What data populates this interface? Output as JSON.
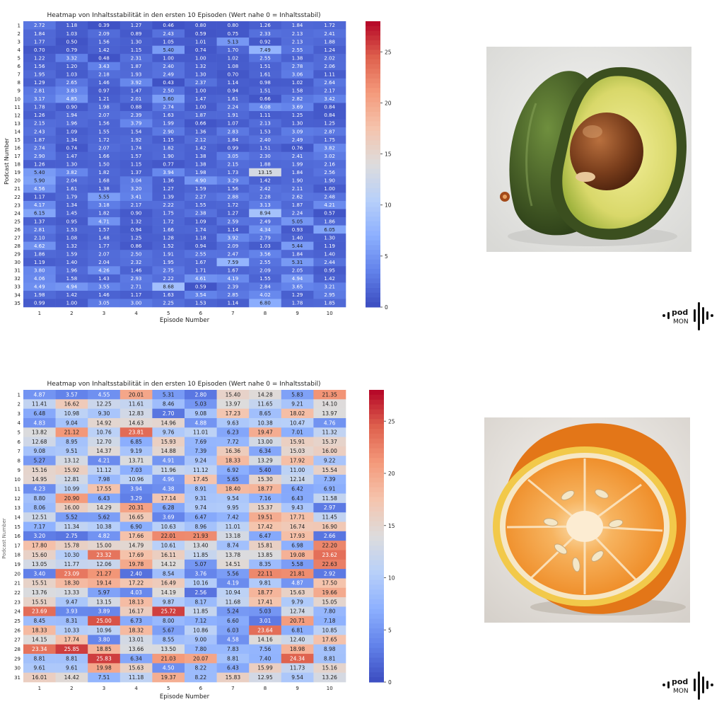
{
  "chart_data": [
    {
      "type": "heatmap",
      "title": "Heatmap von Inhaltsstabilität in den ersten 10 Episoden (Wert nahe 0 = Inhaltsstabil)",
      "xlabel": "Episode Number",
      "ylabel": "Podcast Number",
      "x": [
        "1",
        "2",
        "3",
        "4",
        "5",
        "6",
        "7",
        "8",
        "9",
        "10"
      ],
      "y": [
        "1",
        "2",
        "3",
        "4",
        "5",
        "6",
        "7",
        "8",
        "9",
        "10",
        "11",
        "12",
        "13",
        "14",
        "15",
        "16",
        "17",
        "18",
        "19",
        "20",
        "21",
        "22",
        "23",
        "24",
        "25",
        "26",
        "27",
        "28",
        "29",
        "30",
        "31",
        "32",
        "33",
        "34",
        "35"
      ],
      "colorbar_ticks": [
        0,
        5,
        10,
        15,
        20,
        25
      ],
      "vmin": 0,
      "vmax": 28,
      "colormap": "coolwarm",
      "values": [
        [
          2.72,
          1.18,
          0.39,
          1.27,
          0.46,
          0.8,
          0.8,
          1.26,
          1.84,
          1.72
        ],
        [
          1.84,
          1.03,
          2.09,
          0.89,
          2.43,
          0.59,
          0.75,
          2.33,
          2.13,
          2.41
        ],
        [
          1.77,
          0.5,
          1.56,
          1.3,
          1.05,
          1.01,
          5.13,
          0.92,
          2.13,
          1.88
        ],
        [
          0.7,
          0.79,
          1.42,
          1.15,
          5.4,
          0.74,
          1.7,
          7.49,
          2.55,
          1.24
        ],
        [
          1.22,
          3.32,
          0.48,
          2.31,
          1.0,
          1.0,
          1.02,
          2.55,
          1.38,
          2.02
        ],
        [
          1.56,
          1.2,
          3.43,
          1.87,
          2.4,
          1.32,
          1.08,
          1.51,
          2.78,
          2.06
        ],
        [
          1.95,
          1.03,
          2.18,
          1.93,
          2.49,
          1.3,
          0.7,
          1.61,
          3.06,
          1.11
        ],
        [
          1.29,
          2.65,
          1.46,
          3.92,
          0.43,
          2.37,
          1.14,
          0.98,
          1.02,
          2.64
        ],
        [
          2.81,
          3.83,
          0.97,
          1.47,
          2.5,
          1.0,
          0.94,
          1.51,
          1.58,
          2.17
        ],
        [
          3.17,
          4.85,
          1.21,
          2.01,
          5.6,
          1.47,
          1.61,
          0.66,
          2.82,
          3.42
        ],
        [
          1.78,
          0.9,
          1.98,
          0.88,
          2.74,
          1.0,
          2.24,
          4.08,
          3.69,
          0.84
        ],
        [
          1.26,
          1.94,
          2.07,
          2.39,
          1.63,
          1.87,
          1.91,
          1.11,
          1.25,
          0.84
        ],
        [
          2.15,
          1.96,
          1.56,
          3.79,
          1.99,
          0.66,
          1.07,
          2.13,
          1.3,
          1.25
        ],
        [
          2.43,
          1.09,
          1.55,
          1.54,
          2.9,
          1.36,
          2.83,
          1.53,
          3.09,
          2.87
        ],
        [
          1.87,
          1.34,
          1.72,
          1.92,
          1.15,
          2.12,
          1.84,
          2.4,
          2.49,
          1.75
        ],
        [
          2.74,
          0.74,
          2.07,
          1.74,
          1.82,
          1.42,
          0.99,
          1.51,
          0.76,
          3.82
        ],
        [
          2.9,
          1.47,
          1.66,
          1.57,
          1.9,
          1.38,
          3.05,
          2.3,
          2.41,
          3.02
        ],
        [
          1.26,
          1.3,
          1.5,
          1.15,
          0.77,
          1.38,
          2.15,
          1.88,
          1.99,
          2.16
        ],
        [
          5.4,
          3.82,
          1.82,
          1.37,
          3.94,
          1.98,
          1.73,
          13.15,
          1.84,
          2.56
        ],
        [
          5.9,
          2.04,
          1.68,
          3.04,
          1.36,
          4.9,
          3.29,
          1.42,
          1.9,
          1.9
        ],
        [
          4.56,
          1.61,
          1.38,
          3.2,
          1.27,
          1.59,
          1.56,
          2.42,
          2.11,
          1.0
        ],
        [
          1.17,
          1.79,
          5.55,
          3.41,
          1.39,
          2.27,
          2.88,
          2.28,
          2.62,
          2.48
        ],
        [
          4.17,
          1.34,
          3.18,
          2.17,
          2.22,
          1.55,
          1.72,
          3.13,
          1.87,
          4.21
        ],
        [
          6.15,
          1.45,
          1.82,
          0.9,
          1.75,
          2.38,
          1.27,
          8.94,
          2.24,
          0.57
        ],
        [
          1.37,
          0.95,
          4.71,
          1.32,
          1.72,
          1.09,
          2.59,
          2.49,
          5.05,
          1.86
        ],
        [
          2.81,
          1.53,
          1.57,
          0.94,
          1.66,
          1.74,
          1.14,
          4.34,
          0.93,
          6.05
        ],
        [
          2.1,
          1.08,
          1.48,
          1.25,
          1.28,
          1.18,
          3.92,
          2.79,
          1.4,
          1.3
        ],
        [
          4.62,
          1.32,
          1.77,
          0.86,
          1.52,
          0.94,
          2.09,
          1.03,
          5.44,
          1.19
        ],
        [
          1.86,
          1.59,
          2.07,
          2.5,
          1.91,
          2.55,
          2.47,
          3.56,
          1.84,
          1.4
        ],
        [
          1.19,
          1.4,
          2.04,
          2.32,
          1.95,
          1.67,
          7.59,
          2.55,
          5.31,
          2.44
        ],
        [
          3.8,
          1.96,
          4.26,
          1.46,
          2.75,
          1.71,
          1.67,
          2.09,
          2.05,
          0.95
        ],
        [
          4.06,
          1.58,
          1.43,
          2.93,
          2.22,
          4.61,
          4.19,
          1.55,
          4.94,
          1.42
        ],
        [
          4.49,
          4.94,
          3.55,
          2.71,
          8.68,
          0.59,
          2.39,
          2.84,
          3.65,
          3.21
        ],
        [
          1.98,
          1.42,
          1.46,
          1.17,
          1.63,
          3.54,
          2.85,
          4.02,
          1.29,
          2.95
        ],
        [
          0.99,
          1.0,
          3.05,
          3.0,
          2.25,
          1.53,
          1.14,
          6.8,
          1.78,
          1.85
        ]
      ]
    },
    {
      "type": "heatmap",
      "title": "Heatmap von Inhaltsstabilität in den ersten 10 Episoden (Wert nahe 0 = Inhaltsstabil)",
      "xlabel": "Episode Number",
      "ylabel": "Podcast Number",
      "x": [
        "1",
        "2",
        "3",
        "4",
        "5",
        "6",
        "7",
        "8",
        "9",
        "10"
      ],
      "y": [
        "1",
        "2",
        "3",
        "4",
        "5",
        "6",
        "7",
        "8",
        "9",
        "10",
        "11",
        "12",
        "13",
        "14",
        "15",
        "16",
        "17",
        "18",
        "19",
        "20",
        "21",
        "22",
        "23",
        "24",
        "25",
        "26",
        "27",
        "28",
        "29",
        "30",
        "31"
      ],
      "colorbar_ticks": [
        0,
        5,
        10,
        15,
        20,
        25
      ],
      "vmin": 0,
      "vmax": 28,
      "colormap": "coolwarm",
      "values": [
        [
          4.87,
          3.57,
          4.55,
          20.01,
          5.31,
          2.8,
          15.4,
          14.28,
          5.83,
          21.35
        ],
        [
          11.41,
          16.62,
          12.25,
          11.61,
          8.46,
          5.03,
          13.97,
          11.65,
          9.21,
          14.1
        ],
        [
          6.48,
          10.98,
          9.3,
          12.83,
          2.7,
          9.08,
          17.23,
          8.65,
          18.02,
          13.97
        ],
        [
          4.83,
          9.04,
          14.92,
          14.63,
          14.96,
          4.88,
          9.63,
          10.38,
          10.47,
          4.76
        ],
        [
          13.82,
          21.12,
          10.76,
          23.81,
          9.76,
          11.01,
          6.23,
          19.47,
          7.01,
          11.32
        ],
        [
          12.68,
          8.95,
          12.7,
          6.85,
          15.93,
          7.69,
          7.72,
          13.0,
          15.91,
          15.37
        ],
        [
          9.08,
          9.51,
          14.37,
          9.19,
          14.88,
          7.39,
          16.36,
          6.34,
          15.03,
          16.0
        ],
        [
          5.27,
          13.12,
          4.21,
          13.71,
          4.91,
          9.24,
          18.33,
          13.29,
          17.92,
          9.22
        ],
        [
          15.16,
          15.92,
          11.12,
          7.03,
          11.96,
          11.12,
          6.92,
          5.4,
          11.0,
          15.54
        ],
        [
          14.95,
          12.81,
          7.98,
          10.96,
          4.96,
          17.45,
          5.65,
          15.3,
          12.14,
          7.39
        ],
        [
          4.23,
          10.99,
          17.55,
          3.94,
          4.38,
          8.91,
          18.4,
          18.77,
          6.42,
          6.91
        ],
        [
          8.8,
          20.9,
          6.43,
          3.29,
          17.14,
          9.31,
          9.54,
          7.16,
          6.43,
          11.58
        ],
        [
          8.06,
          16.0,
          14.29,
          20.31,
          6.28,
          9.74,
          9.95,
          15.37,
          9.43,
          2.97
        ],
        [
          12.51,
          5.52,
          5.62,
          16.65,
          3.69,
          6.47,
          7.42,
          19.51,
          17.71,
          11.45
        ],
        [
          7.17,
          11.34,
          10.38,
          6.9,
          10.63,
          8.96,
          11.01,
          17.42,
          16.74,
          16.9
        ],
        [
          3.2,
          2.75,
          4.82,
          17.66,
          22.01,
          21.93,
          13.18,
          6.47,
          17.93,
          2.66
        ],
        [
          17.8,
          15.78,
          15.0,
          14.79,
          10.61,
          13.4,
          8.74,
          15.81,
          6.98,
          22.2
        ],
        [
          15.6,
          10.3,
          23.32,
          17.69,
          16.11,
          11.85,
          13.78,
          13.85,
          19.08,
          23.62
        ],
        [
          13.05,
          11.77,
          12.06,
          19.78,
          14.12,
          5.07,
          14.51,
          8.35,
          5.58,
          22.63
        ],
        [
          3.4,
          23.09,
          21.27,
          2.4,
          8.54,
          3.76,
          5.56,
          22.11,
          21.81,
          2.92
        ],
        [
          15.51,
          18.3,
          19.14,
          17.22,
          16.49,
          10.16,
          4.19,
          9.81,
          4.87,
          17.5
        ],
        [
          13.76,
          13.33,
          5.97,
          4.03,
          14.19,
          2.56,
          10.94,
          18.77,
          15.63,
          19.66
        ],
        [
          15.51,
          9.47,
          13.15,
          18.13,
          9.87,
          8.17,
          11.68,
          17.41,
          9.79,
          15.05
        ],
        [
          23.69,
          3.93,
          3.89,
          16.17,
          25.72,
          11.85,
          5.24,
          5.03,
          12.74,
          7.8
        ],
        [
          8.45,
          8.31,
          25.0,
          6.73,
          8.0,
          7.12,
          6.6,
          3.01,
          20.71,
          7.18
        ],
        [
          18.33,
          10.33,
          10.96,
          18.32,
          5.67,
          10.86,
          6.03,
          23.64,
          6.81,
          10.85
        ],
        [
          14.15,
          17.74,
          3.8,
          13.01,
          8.55,
          9.0,
          4.58,
          14.16,
          12.4,
          17.65
        ],
        [
          23.34,
          25.85,
          18.85,
          13.66,
          13.5,
          7.8,
          7.83,
          7.56,
          18.98,
          8.98
        ],
        [
          8.81,
          8.81,
          25.83,
          6.34,
          21.03,
          20.07,
          8.81,
          7.4,
          24.34,
          8.81
        ],
        [
          9.61,
          9.61,
          19.98,
          15.63,
          4.5,
          8.22,
          6.43,
          15.99,
          11.73,
          15.16
        ],
        [
          16.01,
          14.42,
          7.51,
          11.18,
          19.37,
          8.22,
          15.83,
          12.95,
          9.54,
          13.26
        ]
      ]
    }
  ],
  "images": {
    "top": {
      "icon": "avocado-illustration"
    },
    "bottom": {
      "icon": "orange-half-illustration"
    }
  },
  "logo": {
    "line1": "pod",
    "line2": "MON"
  }
}
